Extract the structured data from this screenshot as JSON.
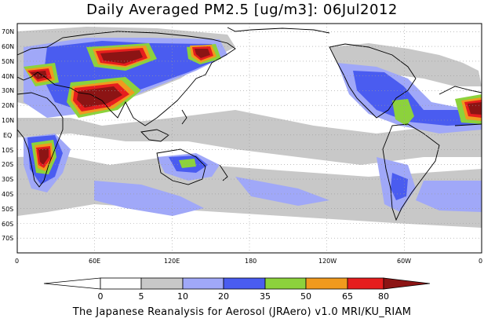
{
  "title": "Daily Averaged PM2.5 [ug/m3]: 06Jul2012",
  "footer": "The Japanese Reanalysis for Aerosol (JRAero) v1.0 MRI/KU_RIAM",
  "lat_labels": [
    "70N",
    "60N",
    "50N",
    "40N",
    "30N",
    "20N",
    "10N",
    "EQ",
    "10S",
    "20S",
    "30S",
    "40S",
    "50S",
    "60S",
    "70S"
  ],
  "lon_labels": [
    "0",
    "60E",
    "120E",
    "180",
    "120W",
    "60W",
    "0"
  ],
  "colorbar": {
    "thresholds": [
      "0",
      "5",
      "10",
      "20",
      "35",
      "50",
      "65",
      "80"
    ],
    "colors": [
      "#ffffff",
      "#c8c8c8",
      "#a0a8f8",
      "#4a5cf0",
      "#8cd23c",
      "#f09a1e",
      "#e61e1e",
      "#8c1414"
    ]
  },
  "colors": {
    "land_outline": "#000000",
    "grid": "#999999"
  }
}
